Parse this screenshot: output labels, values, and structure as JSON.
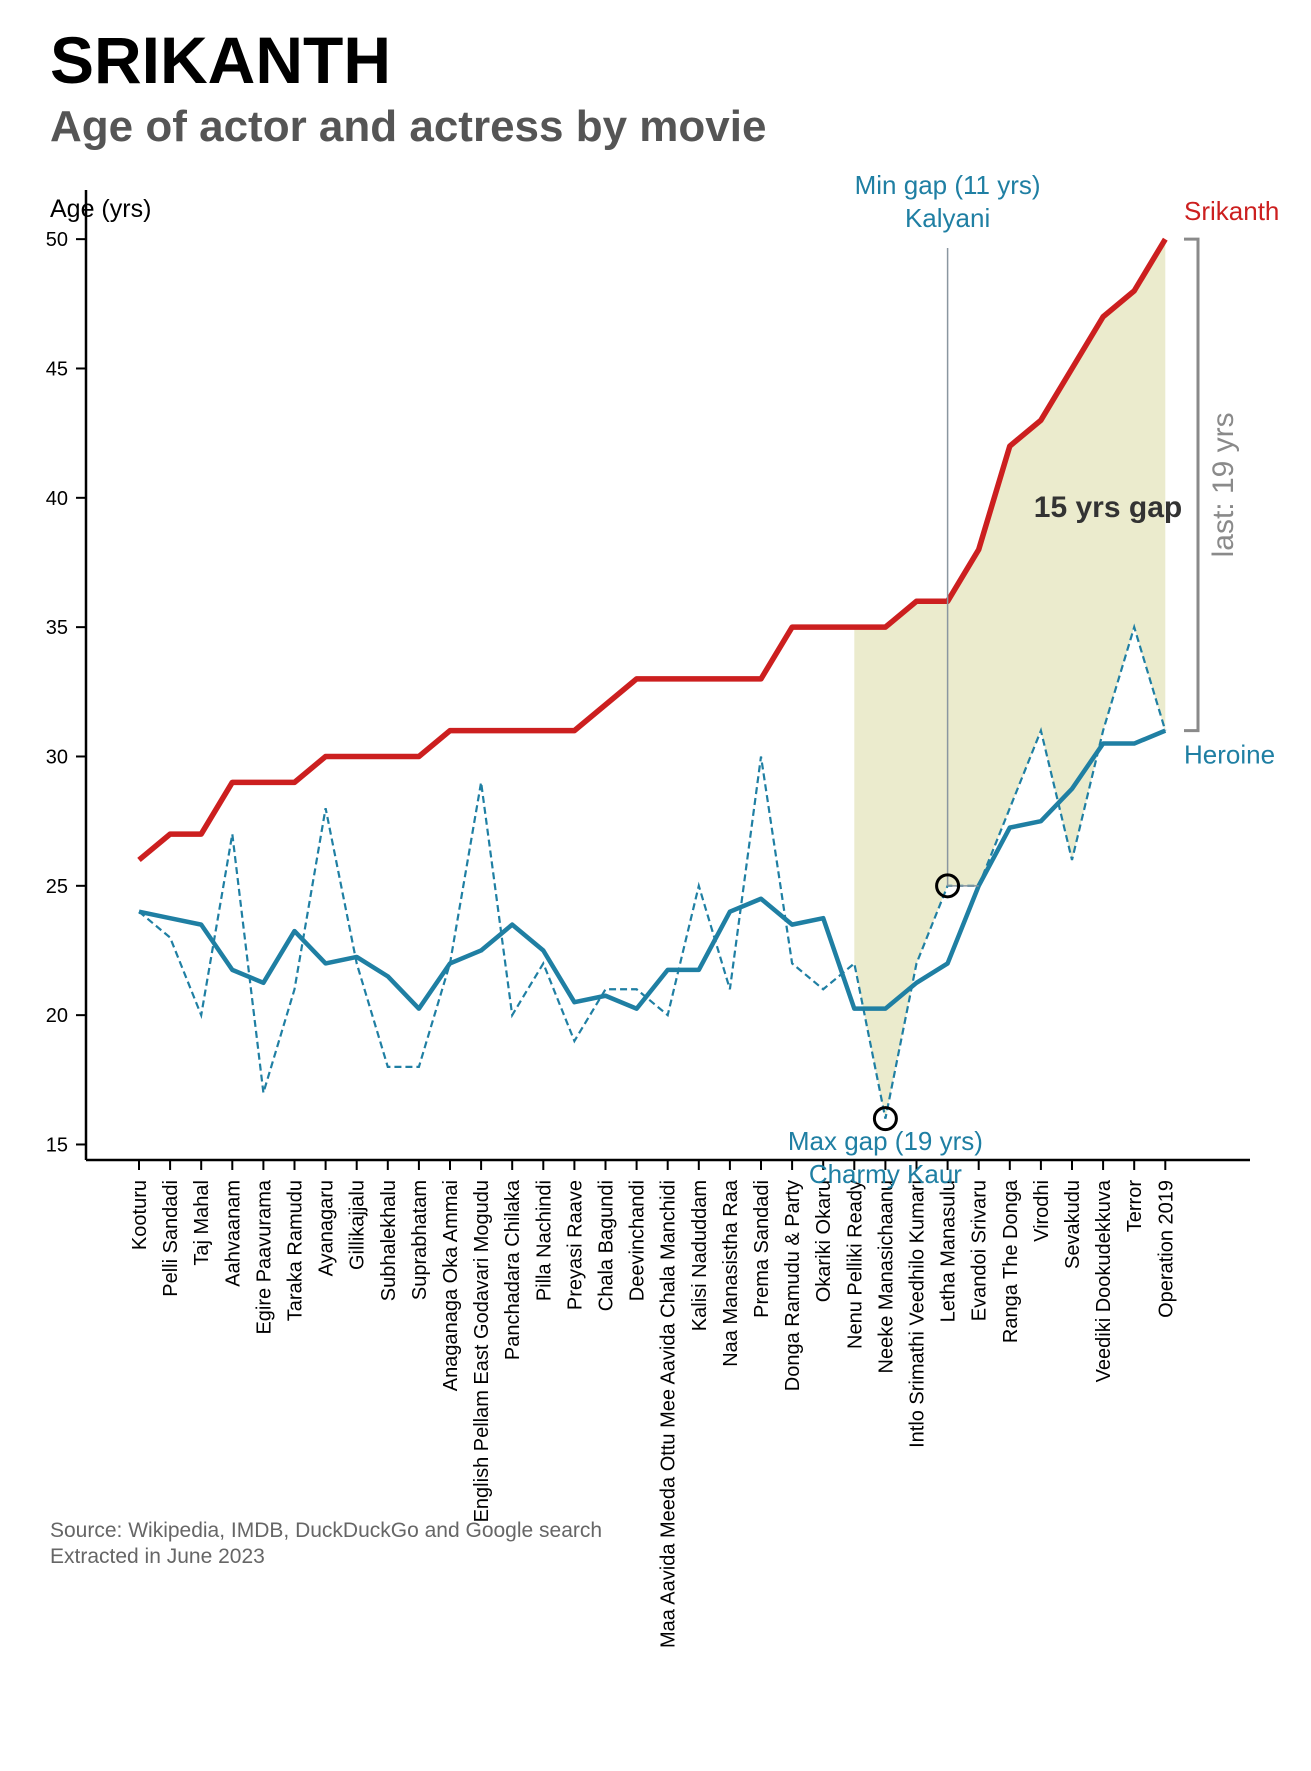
{
  "header": {
    "title": "SRIKANTH",
    "subtitle": "Age of actor and actress by movie"
  },
  "footer": {
    "source_line1": "Source: Wikipedia, IMDB, DuckDuckGo and Google search",
    "source_line2": "Extracted in June 2023"
  },
  "colors": {
    "actor": "#cc1f1f",
    "heroine": "#1f7fa3",
    "gap_fill": "#e8e8c4",
    "annotation_line": "#8a96a0",
    "bracket": "#8a8a8a",
    "gap_text": "#333333"
  },
  "chart_data": {
    "type": "line",
    "title": "SRIKANTH",
    "subtitle": "Age of actor and actress by movie",
    "ylabel": "Age (yrs)",
    "xlabel": "",
    "ylim": [
      14.4,
      51.9
    ],
    "yticks": [
      15,
      20,
      25,
      30,
      35,
      40,
      45,
      50
    ],
    "categories": [
      "Kooturu",
      "Pelli Sandadi",
      "Taj Mahal",
      "Aahvaanam",
      "Egire Paavurama",
      "Taraka Ramudu",
      "Ayanagaru",
      "Gillikajjalu",
      "Subhalekhalu",
      "Suprabhatam",
      "Anaganaga Oka Ammai",
      "English Pellam East Godavari Mogudu",
      "Panchadara Chilaka",
      "Pilla Nachindi",
      "Preyasi Raave",
      "Chala Bagundi",
      "Deevinchandi",
      "Maa Aavida Meeda Ottu Mee Aavida Chala Manchidi",
      "Kalisi Naduddam",
      "Naa Manasistha Raa",
      "Prema Sandadi",
      "Donga Ramudu & Party",
      "Okariki Okaru",
      "Nenu Pelliki Ready",
      "Neeke Manasichaanu",
      "Intlo Srimathi Veedhilo Kumari",
      "Letha Manasulu",
      "Evandoi Srivaru",
      "Ranga The Donga",
      "Virodhi",
      "Sevakudu",
      "Veediki Dookudekkuva",
      "Terror",
      "Operation 2019"
    ],
    "series": [
      {
        "name": "Srikanth",
        "style": "solid",
        "values": [
          26,
          27,
          27,
          29,
          29,
          29,
          30,
          30,
          30,
          30,
          31,
          31,
          31,
          31,
          31,
          32,
          33,
          33,
          33,
          33,
          33,
          35,
          35,
          35,
          35,
          36,
          36,
          38,
          42,
          43,
          45,
          47,
          48,
          50
        ]
      },
      {
        "name": "Heroine",
        "style": "solid",
        "values": [
          24,
          23.75,
          23.5,
          21.75,
          21.25,
          23.25,
          22,
          22.25,
          21.5,
          20.25,
          22,
          22.5,
          23.5,
          22.5,
          20.5,
          20.75,
          20.25,
          21.75,
          21.75,
          24,
          24.5,
          23.5,
          23.75,
          20.25,
          20.25,
          21.25,
          22,
          25,
          27.25,
          27.5,
          28.75,
          30.5,
          30.5,
          31
        ]
      },
      {
        "name": "",
        "style": "dashed",
        "values": [
          24,
          23,
          20,
          27,
          17,
          21,
          28,
          22,
          18,
          18,
          22,
          29,
          20,
          22,
          19,
          21,
          21,
          20,
          25,
          21,
          30,
          22,
          21,
          22,
          16,
          22,
          25,
          25,
          28,
          31,
          26,
          31,
          35,
          31
        ]
      }
    ],
    "legend": [
      {
        "label": "Srikanth",
        "placement": "right of last point"
      },
      {
        "label": "Heroine",
        "placement": "right of last point"
      }
    ],
    "annotations": {
      "min_gap": {
        "line1": "Min gap (11 yrs)",
        "line2": "Kalyani",
        "index": 26,
        "value": 25
      },
      "max_gap": {
        "line1": "Max gap (19 yrs)",
        "line2": "Charmy Kaur",
        "index": 24,
        "value": 16
      },
      "gap_label": "15 yrs gap",
      "last_label": "last: 19 yrs",
      "shade_from_index": 23
    },
    "grid": false
  }
}
